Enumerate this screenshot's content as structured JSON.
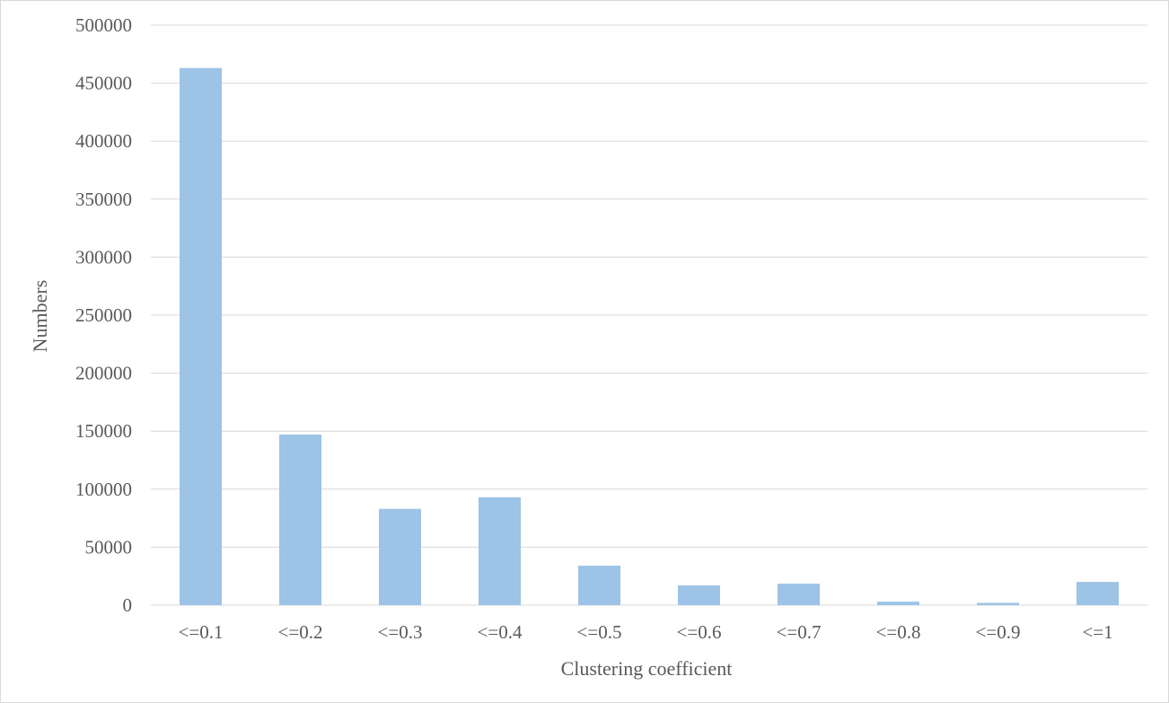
{
  "chart_data": {
    "type": "bar",
    "title": "",
    "xlabel": "Clustering coefficient",
    "ylabel": "Numbers",
    "categories": [
      "<=0.1",
      "<=0.2",
      "<=0.3",
      "<=0.4",
      "<=0.5",
      "<=0.6",
      "<=0.7",
      "<=0.8",
      "<=0.9",
      "<=1"
    ],
    "values": [
      463000,
      147000,
      83000,
      93000,
      34000,
      17000,
      18500,
      3000,
      2000,
      20000
    ],
    "ylim": [
      0,
      500000
    ],
    "yticks": [
      "0",
      "50000",
      "100000",
      "150000",
      "200000",
      "250000",
      "300000",
      "350000",
      "400000",
      "450000",
      "500000"
    ],
    "grid": true,
    "legend": "none",
    "colors": {
      "bar": "#9dc3e6",
      "grid": "#d9d9d9",
      "text": "#595959"
    }
  }
}
